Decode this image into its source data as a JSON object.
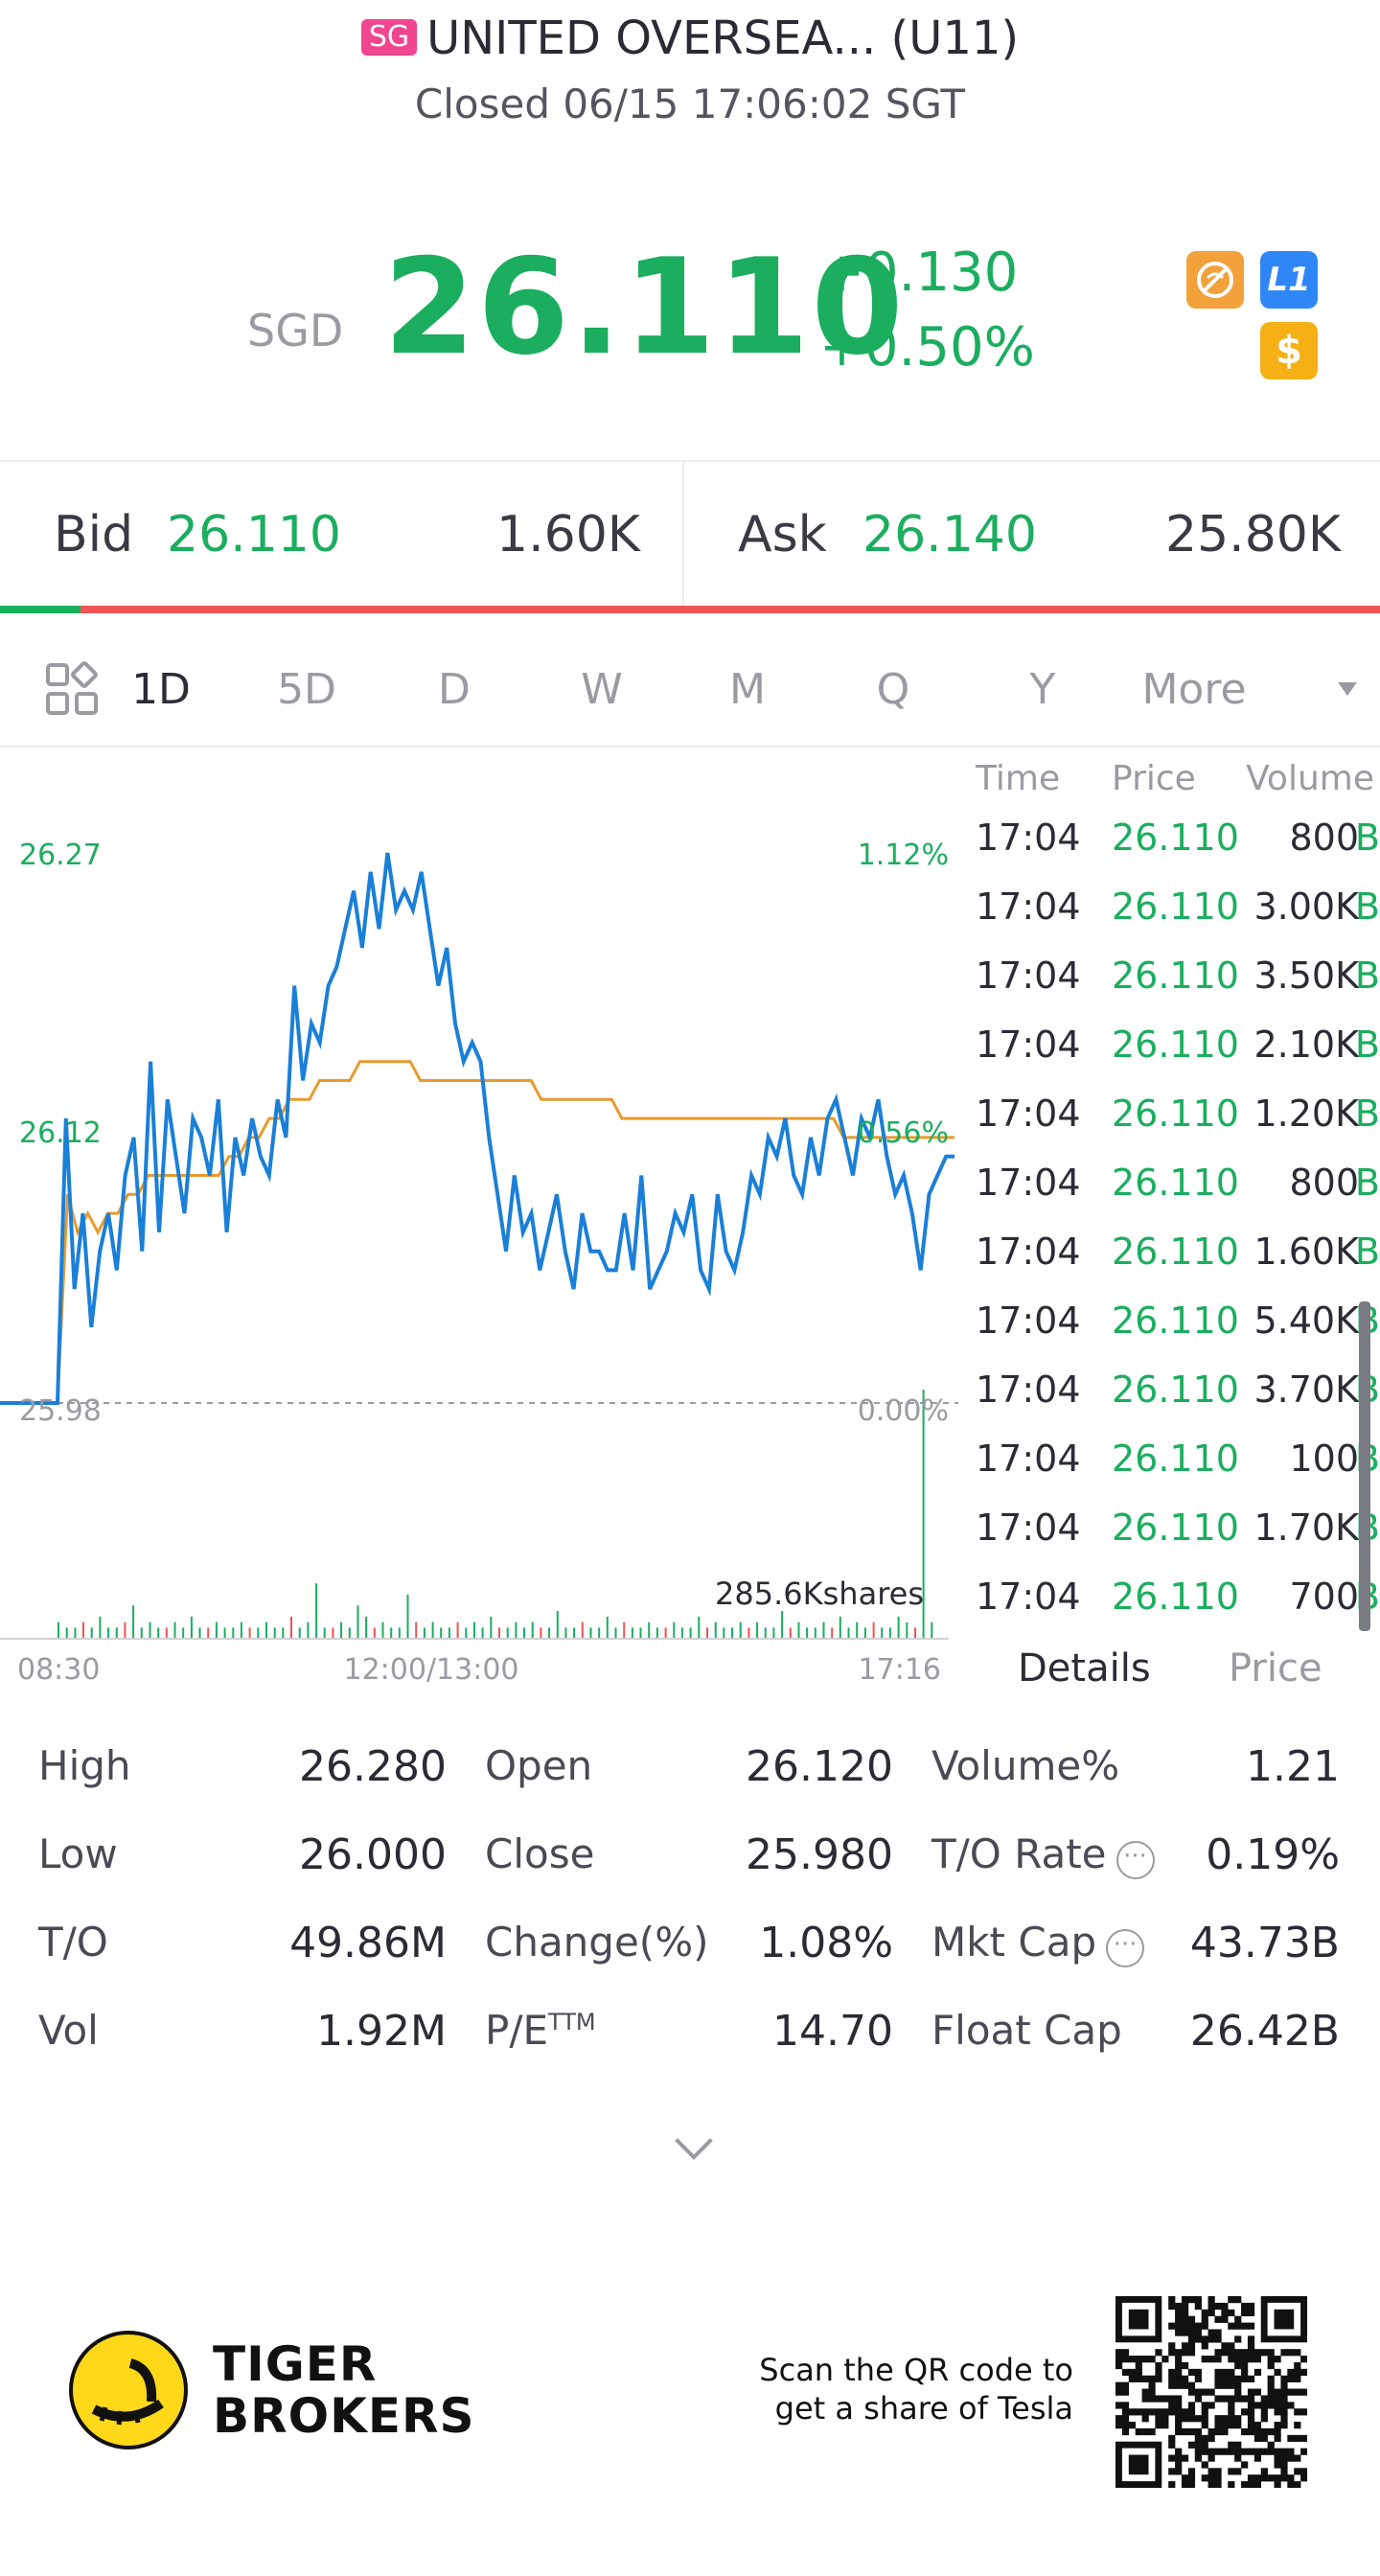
{
  "header": {
    "market_badge": "SG",
    "title": "UNITED OVERSEA... (U11)",
    "status": "Closed 06/15 17:06:02 SGT"
  },
  "quote": {
    "currency": "SGD",
    "price": "26.110",
    "change": "+0.130",
    "change_pct": "+0.50%",
    "icons": [
      "no-short-icon",
      "level1-icon",
      "dollar-icon"
    ],
    "level_badge": "L1",
    "dollar_badge": "$"
  },
  "bidask": {
    "bid_label": "Bid",
    "bid_price": "26.110",
    "bid_size": "1.60K",
    "ask_label": "Ask",
    "ask_price": "26.140",
    "ask_size": "25.80K",
    "bid_share": 0.058
  },
  "periods": {
    "items": [
      "1D",
      "5D",
      "D",
      "W",
      "M",
      "Q",
      "Y",
      "More"
    ],
    "active": "1D"
  },
  "chart_data": {
    "type": "line",
    "y_left_labels": [
      "26.27",
      "26.12",
      "25.98"
    ],
    "y_right_labels": [
      "1.12%",
      "0.56%",
      "0.00%"
    ],
    "x_labels": [
      "08:30",
      "12:00/13:00",
      "17:16"
    ],
    "volume_label": "285.6Kshares",
    "prev_close": 25.98,
    "ylim": [
      25.98,
      26.27
    ],
    "series": [
      {
        "color": "#1a7fd8",
        "values": [
          25.98,
          25.98,
          26.13,
          26.04,
          26.08,
          26.02,
          26.06,
          26.08,
          26.05,
          26.1,
          26.12,
          26.06,
          26.16,
          26.07,
          26.14,
          26.11,
          26.08,
          26.13,
          26.12,
          26.1,
          26.14,
          26.07,
          26.12,
          26.1,
          26.13,
          26.11,
          26.1,
          26.14,
          26.12,
          26.2,
          26.15,
          26.18,
          26.17,
          26.2,
          26.21,
          26.23,
          26.25,
          26.22,
          26.26,
          26.23,
          26.27,
          26.24,
          26.25,
          26.24,
          26.26,
          26.23,
          26.2,
          26.22,
          26.18,
          26.16,
          26.17,
          26.16,
          26.12,
          26.09,
          26.06,
          26.1,
          26.07,
          26.08,
          26.05,
          26.07,
          26.09,
          26.06,
          26.04,
          26.08,
          26.06,
          26.06,
          26.05,
          26.05,
          26.08,
          26.05,
          26.1,
          26.04,
          26.05,
          26.06,
          26.08,
          26.07,
          26.09,
          26.05,
          26.04,
          26.09,
          26.06,
          26.05,
          26.07,
          26.1,
          26.09,
          26.12,
          26.11,
          26.13,
          26.1,
          26.09,
          26.12,
          26.1,
          26.13,
          26.14,
          26.12,
          26.1,
          26.13,
          26.12,
          26.14,
          26.11,
          26.09,
          26.1,
          26.08,
          26.05,
          26.09,
          26.1,
          26.11,
          26.11
        ],
        "name": ""
      },
      {
        "color": "#e99a2c",
        "values": [
          25.98,
          25.98,
          26.09,
          26.07,
          26.08,
          26.07,
          26.08,
          26.08,
          26.09,
          26.09,
          26.1,
          26.1,
          26.1,
          26.1,
          26.1,
          26.1,
          26.1,
          26.1,
          26.11,
          26.11,
          26.12,
          26.12,
          26.13,
          26.13,
          26.14,
          26.14,
          26.14,
          26.15,
          26.15,
          26.15,
          26.15,
          26.16,
          26.16,
          26.16,
          26.16,
          26.16,
          26.16,
          26.15,
          26.15,
          26.15,
          26.15,
          26.15,
          26.15,
          26.15,
          26.15,
          26.15,
          26.15,
          26.15,
          26.15,
          26.14,
          26.14,
          26.14,
          26.14,
          26.14,
          26.14,
          26.14,
          26.14,
          26.13,
          26.13,
          26.13,
          26.13,
          26.13,
          26.13,
          26.13,
          26.13,
          26.13,
          26.13,
          26.13,
          26.13,
          26.13,
          26.13,
          26.13,
          26.13,
          26.13,
          26.13,
          26.13,
          26.13,
          26.13,
          26.13,
          26.12,
          26.12,
          26.12,
          26.12,
          26.12,
          26.12,
          26.12,
          26.12,
          26.12,
          26.12,
          26.12,
          26.12
        ],
        "name": ""
      }
    ],
    "volume": {
      "values": [
        3,
        2,
        2,
        3,
        2,
        4,
        2,
        2,
        3,
        6,
        2,
        3,
        2,
        2,
        3,
        2,
        4,
        2,
        2,
        3,
        2,
        2,
        3,
        2,
        2,
        3,
        2,
        2,
        4,
        2,
        3,
        10,
        2,
        2,
        3,
        2,
        6,
        4,
        2,
        3,
        2,
        2,
        8,
        3,
        2,
        3,
        2,
        2,
        3,
        2,
        3,
        2,
        4,
        2,
        2,
        3,
        2,
        3,
        2,
        2,
        5,
        2,
        2,
        3,
        2,
        2,
        4,
        2,
        3,
        2,
        2,
        3,
        2,
        2,
        3,
        2,
        2,
        4,
        2,
        3,
        2,
        2,
        3,
        2,
        3,
        2,
        2,
        5,
        2,
        3,
        2,
        2,
        3,
        2,
        4,
        2,
        3,
        2,
        3,
        2,
        2,
        4,
        3,
        2,
        45,
        3
      ]
    }
  },
  "ticks": {
    "headers": [
      "Time",
      "Price",
      "Volume"
    ],
    "rows": [
      {
        "time": "17:04",
        "price": "26.110",
        "vol": "800",
        "flag": "B"
      },
      {
        "time": "17:04",
        "price": "26.110",
        "vol": "3.00K",
        "flag": "B"
      },
      {
        "time": "17:04",
        "price": "26.110",
        "vol": "3.50K",
        "flag": "B"
      },
      {
        "time": "17:04",
        "price": "26.110",
        "vol": "2.10K",
        "flag": "B"
      },
      {
        "time": "17:04",
        "price": "26.110",
        "vol": "1.20K",
        "flag": "B"
      },
      {
        "time": "17:04",
        "price": "26.110",
        "vol": "800",
        "flag": "B"
      },
      {
        "time": "17:04",
        "price": "26.110",
        "vol": "1.60K",
        "flag": "B"
      },
      {
        "time": "17:04",
        "price": "26.110",
        "vol": "5.40K",
        "flag": "B"
      },
      {
        "time": "17:04",
        "price": "26.110",
        "vol": "3.70K",
        "flag": "B"
      },
      {
        "time": "17:04",
        "price": "26.110",
        "vol": "100",
        "flag": "B"
      },
      {
        "time": "17:04",
        "price": "26.110",
        "vol": "1.70K",
        "flag": "B"
      },
      {
        "time": "17:04",
        "price": "26.110",
        "vol": "700",
        "flag": "B"
      }
    ],
    "tabs": [
      "Details",
      "Price"
    ]
  },
  "stats": {
    "col1": [
      {
        "label": "High",
        "value": "26.280"
      },
      {
        "label": "Low",
        "value": "26.000"
      },
      {
        "label": "T/O",
        "value": "49.86M"
      },
      {
        "label": "Vol",
        "value": "1.92M"
      }
    ],
    "col2": [
      {
        "label": "Open",
        "value": "26.120"
      },
      {
        "label": "Close",
        "value": "25.980"
      },
      {
        "label": "Change(%)",
        "value": "1.08%"
      },
      {
        "label": "P/E",
        "sup": "TTM",
        "value": "14.70"
      }
    ],
    "col3": [
      {
        "label": "Volume%",
        "value": "1.21"
      },
      {
        "label": "T/O Rate",
        "value": "0.19%"
      },
      {
        "label": "Mkt Cap",
        "value": "43.73B"
      },
      {
        "label": "Float Cap",
        "value": "26.42B"
      }
    ],
    "info_glyph": "···"
  },
  "footer": {
    "brand_line1": "TIGER",
    "brand_line2": "BROKERS",
    "promo_line1": "Scan the QR code to",
    "promo_line2": "get a share of Tesla"
  }
}
